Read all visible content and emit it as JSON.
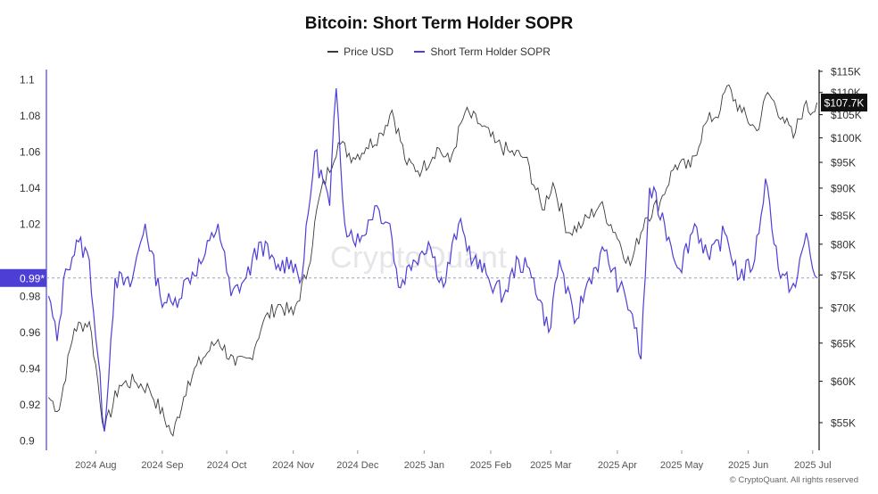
{
  "chart_data": {
    "type": "line",
    "title": "Bitcoin: Short Term Holder SOPR",
    "x_axis_ticks": [
      "2024 Aug",
      "2024 Sep",
      "2024 Oct",
      "2024 Nov",
      "2024 Dec",
      "2025 Jan",
      "2025 Feb",
      "2025 Mar",
      "2025 Apr",
      "2025 May",
      "2025 Jun",
      "2025 Jul"
    ],
    "y_left": {
      "ticks": [
        "0.9",
        "0.92",
        "0.94",
        "0.96",
        "0.98",
        "0.99*",
        "1.02",
        "1.04",
        "1.06",
        "1.08",
        "1.1"
      ],
      "range": [
        0.9,
        1.1
      ],
      "highlight_value": "0.99*",
      "reference_line": 0.99
    },
    "y_right": {
      "ticks": [
        "$55K",
        "$60K",
        "$65K",
        "$70K",
        "$75K",
        "$80K",
        "$85K",
        "$90K",
        "$95K",
        "$100K",
        "$105K",
        "$110K",
        "$115K"
      ],
      "scale": "log",
      "last_value_label": "$107.7K"
    },
    "series": [
      {
        "name": "Price USD",
        "color": "#3a3a3a",
        "axis": "right",
        "points": [
          [
            "2024-07-10",
            58000
          ],
          [
            "2024-07-15",
            56500
          ],
          [
            "2024-07-22",
            67000
          ],
          [
            "2024-07-29",
            68000
          ],
          [
            "2024-08-05",
            54000
          ],
          [
            "2024-08-12",
            59500
          ],
          [
            "2024-08-19",
            60000
          ],
          [
            "2024-08-26",
            59000
          ],
          [
            "2024-09-06",
            53500
          ],
          [
            "2024-09-13",
            60000
          ],
          [
            "2024-09-20",
            63000
          ],
          [
            "2024-09-27",
            65500
          ],
          [
            "2024-10-05",
            62000
          ],
          [
            "2024-10-12",
            63000
          ],
          [
            "2024-10-18",
            68000
          ],
          [
            "2024-10-25",
            70500
          ],
          [
            "2024-11-01",
            69000
          ],
          [
            "2024-11-08",
            76000
          ],
          [
            "2024-11-13",
            88000
          ],
          [
            "2024-11-22",
            99000
          ],
          [
            "2024-11-29",
            96000
          ],
          [
            "2024-12-05",
            98000
          ],
          [
            "2024-12-12",
            101000
          ],
          [
            "2024-12-17",
            106000
          ],
          [
            "2024-12-24",
            94500
          ],
          [
            "2024-12-31",
            93500
          ],
          [
            "2025-01-07",
            98000
          ],
          [
            "2025-01-13",
            95000
          ],
          [
            "2025-01-20",
            105500
          ],
          [
            "2025-01-27",
            103000
          ],
          [
            "2025-02-03",
            99000
          ],
          [
            "2025-02-10",
            97000
          ],
          [
            "2025-02-17",
            96000
          ],
          [
            "2025-02-25",
            86000
          ],
          [
            "2025-03-02",
            91000
          ],
          [
            "2025-03-09",
            82000
          ],
          [
            "2025-03-16",
            83500
          ],
          [
            "2025-03-24",
            87000
          ],
          [
            "2025-03-31",
            82000
          ],
          [
            "2025-04-07",
            76500
          ],
          [
            "2025-04-14",
            84500
          ],
          [
            "2025-04-21",
            87500
          ],
          [
            "2025-04-28",
            94500
          ],
          [
            "2025-05-05",
            94000
          ],
          [
            "2025-05-12",
            103000
          ],
          [
            "2025-05-19",
            106000
          ],
          [
            "2025-05-22",
            111500
          ],
          [
            "2025-05-29",
            105500
          ],
          [
            "2025-06-05",
            101500
          ],
          [
            "2025-06-10",
            110000
          ],
          [
            "2025-06-17",
            104500
          ],
          [
            "2025-06-22",
            100000
          ],
          [
            "2025-06-27",
            107000
          ],
          [
            "2025-07-01",
            105500
          ],
          [
            "2025-07-03",
            107700
          ]
        ]
      },
      {
        "name": "Short Term Holder SOPR",
        "color": "#4d3fd6",
        "axis": "left",
        "points": [
          [
            "2024-07-10",
            0.98
          ],
          [
            "2024-07-14",
            0.955
          ],
          [
            "2024-07-18",
            0.995
          ],
          [
            "2024-07-24",
            1.01
          ],
          [
            "2024-07-29",
            1.0
          ],
          [
            "2024-08-05",
            0.905
          ],
          [
            "2024-08-10",
            0.99
          ],
          [
            "2024-08-17",
            0.985
          ],
          [
            "2024-08-24",
            1.02
          ],
          [
            "2024-08-31",
            0.98
          ],
          [
            "2024-09-06",
            0.975
          ],
          [
            "2024-09-13",
            0.99
          ],
          [
            "2024-09-20",
            1.0
          ],
          [
            "2024-09-27",
            1.02
          ],
          [
            "2024-10-03",
            0.98
          ],
          [
            "2024-10-10",
            0.99
          ],
          [
            "2024-10-17",
            1.01
          ],
          [
            "2024-10-24",
            0.995
          ],
          [
            "2024-10-31",
            1.0
          ],
          [
            "2024-11-05",
            0.99
          ],
          [
            "2024-11-11",
            1.06
          ],
          [
            "2024-11-18",
            1.03
          ],
          [
            "2024-11-21",
            1.095
          ],
          [
            "2024-11-25",
            1.02
          ],
          [
            "2024-12-02",
            1.01
          ],
          [
            "2024-12-09",
            1.03
          ],
          [
            "2024-12-16",
            1.02
          ],
          [
            "2024-12-20",
            0.985
          ],
          [
            "2024-12-27",
            1.0
          ],
          [
            "2025-01-03",
            1.01
          ],
          [
            "2025-01-10",
            0.985
          ],
          [
            "2025-01-17",
            1.02
          ],
          [
            "2025-01-24",
            1.0
          ],
          [
            "2025-01-31",
            0.99
          ],
          [
            "2025-02-07",
            0.98
          ],
          [
            "2025-02-14",
            1.0
          ],
          [
            "2025-02-21",
            0.99
          ],
          [
            "2025-02-28",
            0.96
          ],
          [
            "2025-03-05",
            1.0
          ],
          [
            "2025-03-12",
            0.965
          ],
          [
            "2025-03-19",
            0.99
          ],
          [
            "2025-03-26",
            1.005
          ],
          [
            "2025-04-02",
            0.985
          ],
          [
            "2025-04-08",
            0.97
          ],
          [
            "2025-04-12",
            0.945
          ],
          [
            "2025-04-16",
            1.04
          ],
          [
            "2025-04-23",
            1.02
          ],
          [
            "2025-04-30",
            0.995
          ],
          [
            "2025-05-07",
            1.02
          ],
          [
            "2025-05-14",
            1.0
          ],
          [
            "2025-05-21",
            1.015
          ],
          [
            "2025-05-28",
            0.99
          ],
          [
            "2025-06-04",
            1.0
          ],
          [
            "2025-06-09",
            1.045
          ],
          [
            "2025-06-16",
            0.99
          ],
          [
            "2025-06-23",
            0.985
          ],
          [
            "2025-06-28",
            1.015
          ],
          [
            "2025-07-01",
            0.995
          ],
          [
            "2025-07-03",
            0.99
          ]
        ]
      }
    ]
  },
  "watermark": "CryptoQuant",
  "credit": "© CryptoQuant. All rights reserved"
}
